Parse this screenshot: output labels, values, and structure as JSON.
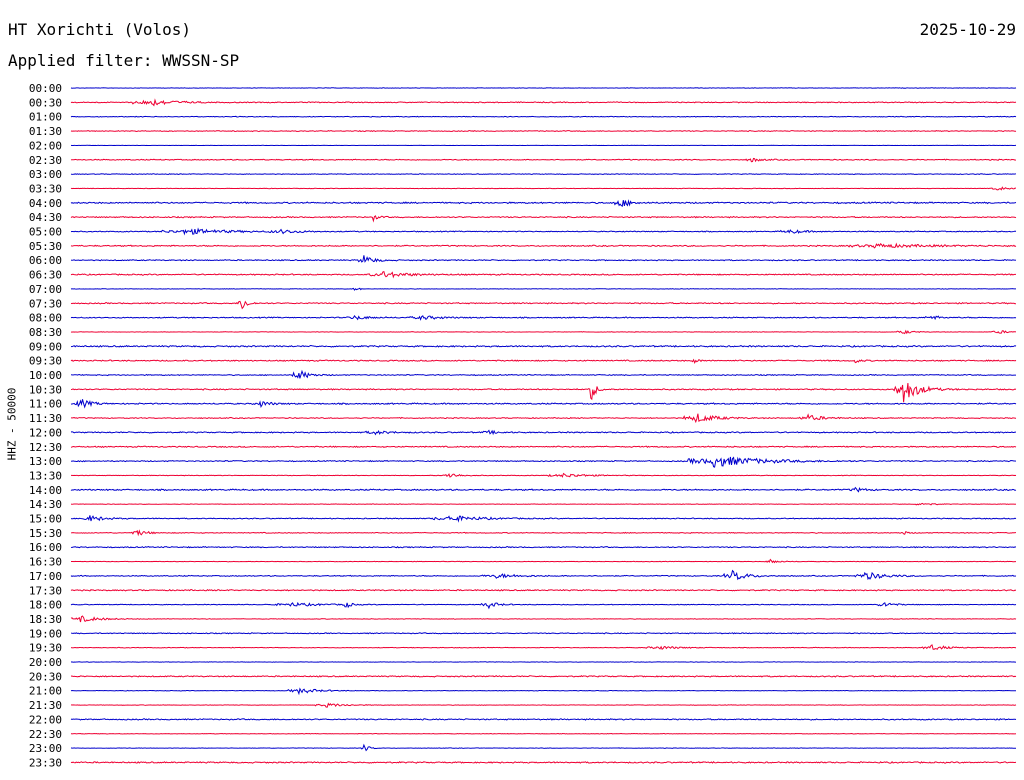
{
  "header": {
    "station": "HT Xorichti (Volos)",
    "filter": "Applied filter: WWSSN-SP",
    "date": "2025-10-29"
  },
  "chart_data": {
    "type": "line",
    "ylabel": "HHZ - 50000",
    "colors": {
      "even": "#0000cc",
      "odd": "#ee0033"
    },
    "rows": [
      {
        "label": "00:00",
        "amp": 0.2,
        "events": []
      },
      {
        "label": "00:30",
        "amp": 0.4,
        "events": [
          [
            0.08,
            4,
            0.05
          ]
        ]
      },
      {
        "label": "01:00",
        "amp": 0.3,
        "events": []
      },
      {
        "label": "01:30",
        "amp": 0.35,
        "events": []
      },
      {
        "label": "02:00",
        "amp": 0.1,
        "events": []
      },
      {
        "label": "02:30",
        "amp": 0.4,
        "events": [
          [
            0.72,
            2,
            0.02
          ]
        ]
      },
      {
        "label": "03:00",
        "amp": 0.3,
        "events": []
      },
      {
        "label": "03:30",
        "amp": 0.2,
        "events": [
          [
            0.98,
            2,
            0.02
          ]
        ]
      },
      {
        "label": "04:00",
        "amp": 0.6,
        "events": [
          [
            0.58,
            5,
            0.02
          ]
        ]
      },
      {
        "label": "04:30",
        "amp": 0.5,
        "events": [
          [
            0.32,
            3,
            0.01
          ]
        ]
      },
      {
        "label": "05:00",
        "amp": 0.4,
        "events": [
          [
            0.12,
            3,
            0.08
          ],
          [
            0.22,
            2,
            0.04
          ],
          [
            0.76,
            2,
            0.03
          ]
        ]
      },
      {
        "label": "05:30",
        "amp": 0.5,
        "events": [
          [
            0.85,
            2,
            0.1
          ]
        ]
      },
      {
        "label": "06:00",
        "amp": 0.45,
        "events": [
          [
            0.31,
            5,
            0.02
          ]
        ]
      },
      {
        "label": "06:30",
        "amp": 0.5,
        "events": [
          [
            0.33,
            3,
            0.05
          ]
        ]
      },
      {
        "label": "07:00",
        "amp": 0.2,
        "events": [
          [
            0.3,
            2,
            0.01
          ]
        ]
      },
      {
        "label": "07:30",
        "amp": 0.5,
        "events": [
          [
            0.18,
            10,
            0.01
          ]
        ]
      },
      {
        "label": "08:00",
        "amp": 0.45,
        "events": [
          [
            0.3,
            2,
            0.03
          ],
          [
            0.37,
            2,
            0.04
          ],
          [
            0.91,
            2,
            0.02
          ]
        ]
      },
      {
        "label": "08:30",
        "amp": 0.2,
        "events": [
          [
            0.88,
            2,
            0.02
          ],
          [
            0.98,
            2,
            0.02
          ]
        ]
      },
      {
        "label": "09:00",
        "amp": 0.6,
        "events": []
      },
      {
        "label": "09:30",
        "amp": 0.5,
        "events": [
          [
            0.66,
            2,
            0.01
          ],
          [
            0.83,
            2,
            0.01
          ]
        ]
      },
      {
        "label": "10:00",
        "amp": 0.4,
        "events": [
          [
            0.24,
            6,
            0.02
          ]
        ]
      },
      {
        "label": "10:30",
        "amp": 0.5,
        "events": [
          [
            0.55,
            12,
            0.01
          ],
          [
            0.88,
            14,
            0.03
          ]
        ]
      },
      {
        "label": "11:00",
        "amp": 0.55,
        "events": [
          [
            0.01,
            5,
            0.02
          ],
          [
            0.2,
            3,
            0.02
          ]
        ]
      },
      {
        "label": "11:30",
        "amp": 0.4,
        "events": [
          [
            0.66,
            5,
            0.04
          ],
          [
            0.78,
            3,
            0.03
          ]
        ]
      },
      {
        "label": "12:00",
        "amp": 0.5,
        "events": [
          [
            0.32,
            2,
            0.03
          ],
          [
            0.44,
            2,
            0.02
          ]
        ]
      },
      {
        "label": "12:30",
        "amp": 0.5,
        "events": []
      },
      {
        "label": "13:00",
        "amp": 0.45,
        "events": [
          [
            0.68,
            6,
            0.09
          ]
        ]
      },
      {
        "label": "13:30",
        "amp": 0.25,
        "events": [
          [
            0.4,
            3,
            0.02
          ],
          [
            0.52,
            2,
            0.05
          ]
        ]
      },
      {
        "label": "14:00",
        "amp": 0.55,
        "events": [
          [
            0.83,
            2,
            0.02
          ]
        ]
      },
      {
        "label": "14:30",
        "amp": 0.2,
        "events": [
          [
            0.9,
            2,
            0.02
          ]
        ]
      },
      {
        "label": "15:00",
        "amp": 0.4,
        "events": [
          [
            0.02,
            3,
            0.03
          ],
          [
            0.4,
            3,
            0.06
          ]
        ]
      },
      {
        "label": "15:30",
        "amp": 0.35,
        "events": [
          [
            0.07,
            3,
            0.02
          ],
          [
            0.88,
            2,
            0.01
          ]
        ]
      },
      {
        "label": "16:00",
        "amp": 0.45,
        "events": []
      },
      {
        "label": "16:30",
        "amp": 0.2,
        "events": [
          [
            0.74,
            2,
            0.02
          ]
        ]
      },
      {
        "label": "17:00",
        "amp": 0.4,
        "events": [
          [
            0.45,
            2,
            0.05
          ],
          [
            0.7,
            5,
            0.03
          ],
          [
            0.84,
            4,
            0.04
          ]
        ]
      },
      {
        "label": "17:30",
        "amp": 0.5,
        "events": []
      },
      {
        "label": "18:00",
        "amp": 0.3,
        "events": [
          [
            0.23,
            2,
            0.06
          ],
          [
            0.29,
            4,
            0.01
          ],
          [
            0.44,
            4,
            0.02
          ],
          [
            0.86,
            3,
            0.02
          ]
        ]
      },
      {
        "label": "18:30",
        "amp": 0.25,
        "events": [
          [
            0.01,
            3,
            0.04
          ]
        ]
      },
      {
        "label": "19:00",
        "amp": 0.4,
        "events": []
      },
      {
        "label": "19:30",
        "amp": 0.25,
        "events": [
          [
            0.62,
            2,
            0.04
          ],
          [
            0.91,
            3,
            0.03
          ]
        ]
      },
      {
        "label": "20:00",
        "amp": 0.2,
        "events": []
      },
      {
        "label": "20:30",
        "amp": 0.5,
        "events": []
      },
      {
        "label": "21:00",
        "amp": 0.2,
        "events": [
          [
            0.24,
            3,
            0.04
          ]
        ]
      },
      {
        "label": "21:30",
        "amp": 0.2,
        "events": [
          [
            0.27,
            2,
            0.04
          ]
        ]
      },
      {
        "label": "22:00",
        "amp": 0.5,
        "events": []
      },
      {
        "label": "22:30",
        "amp": 0.2,
        "events": []
      },
      {
        "label": "23:00",
        "amp": 0.2,
        "events": [
          [
            0.31,
            4,
            0.01
          ]
        ]
      },
      {
        "label": "23:30",
        "amp": 0.55,
        "events": []
      }
    ]
  }
}
